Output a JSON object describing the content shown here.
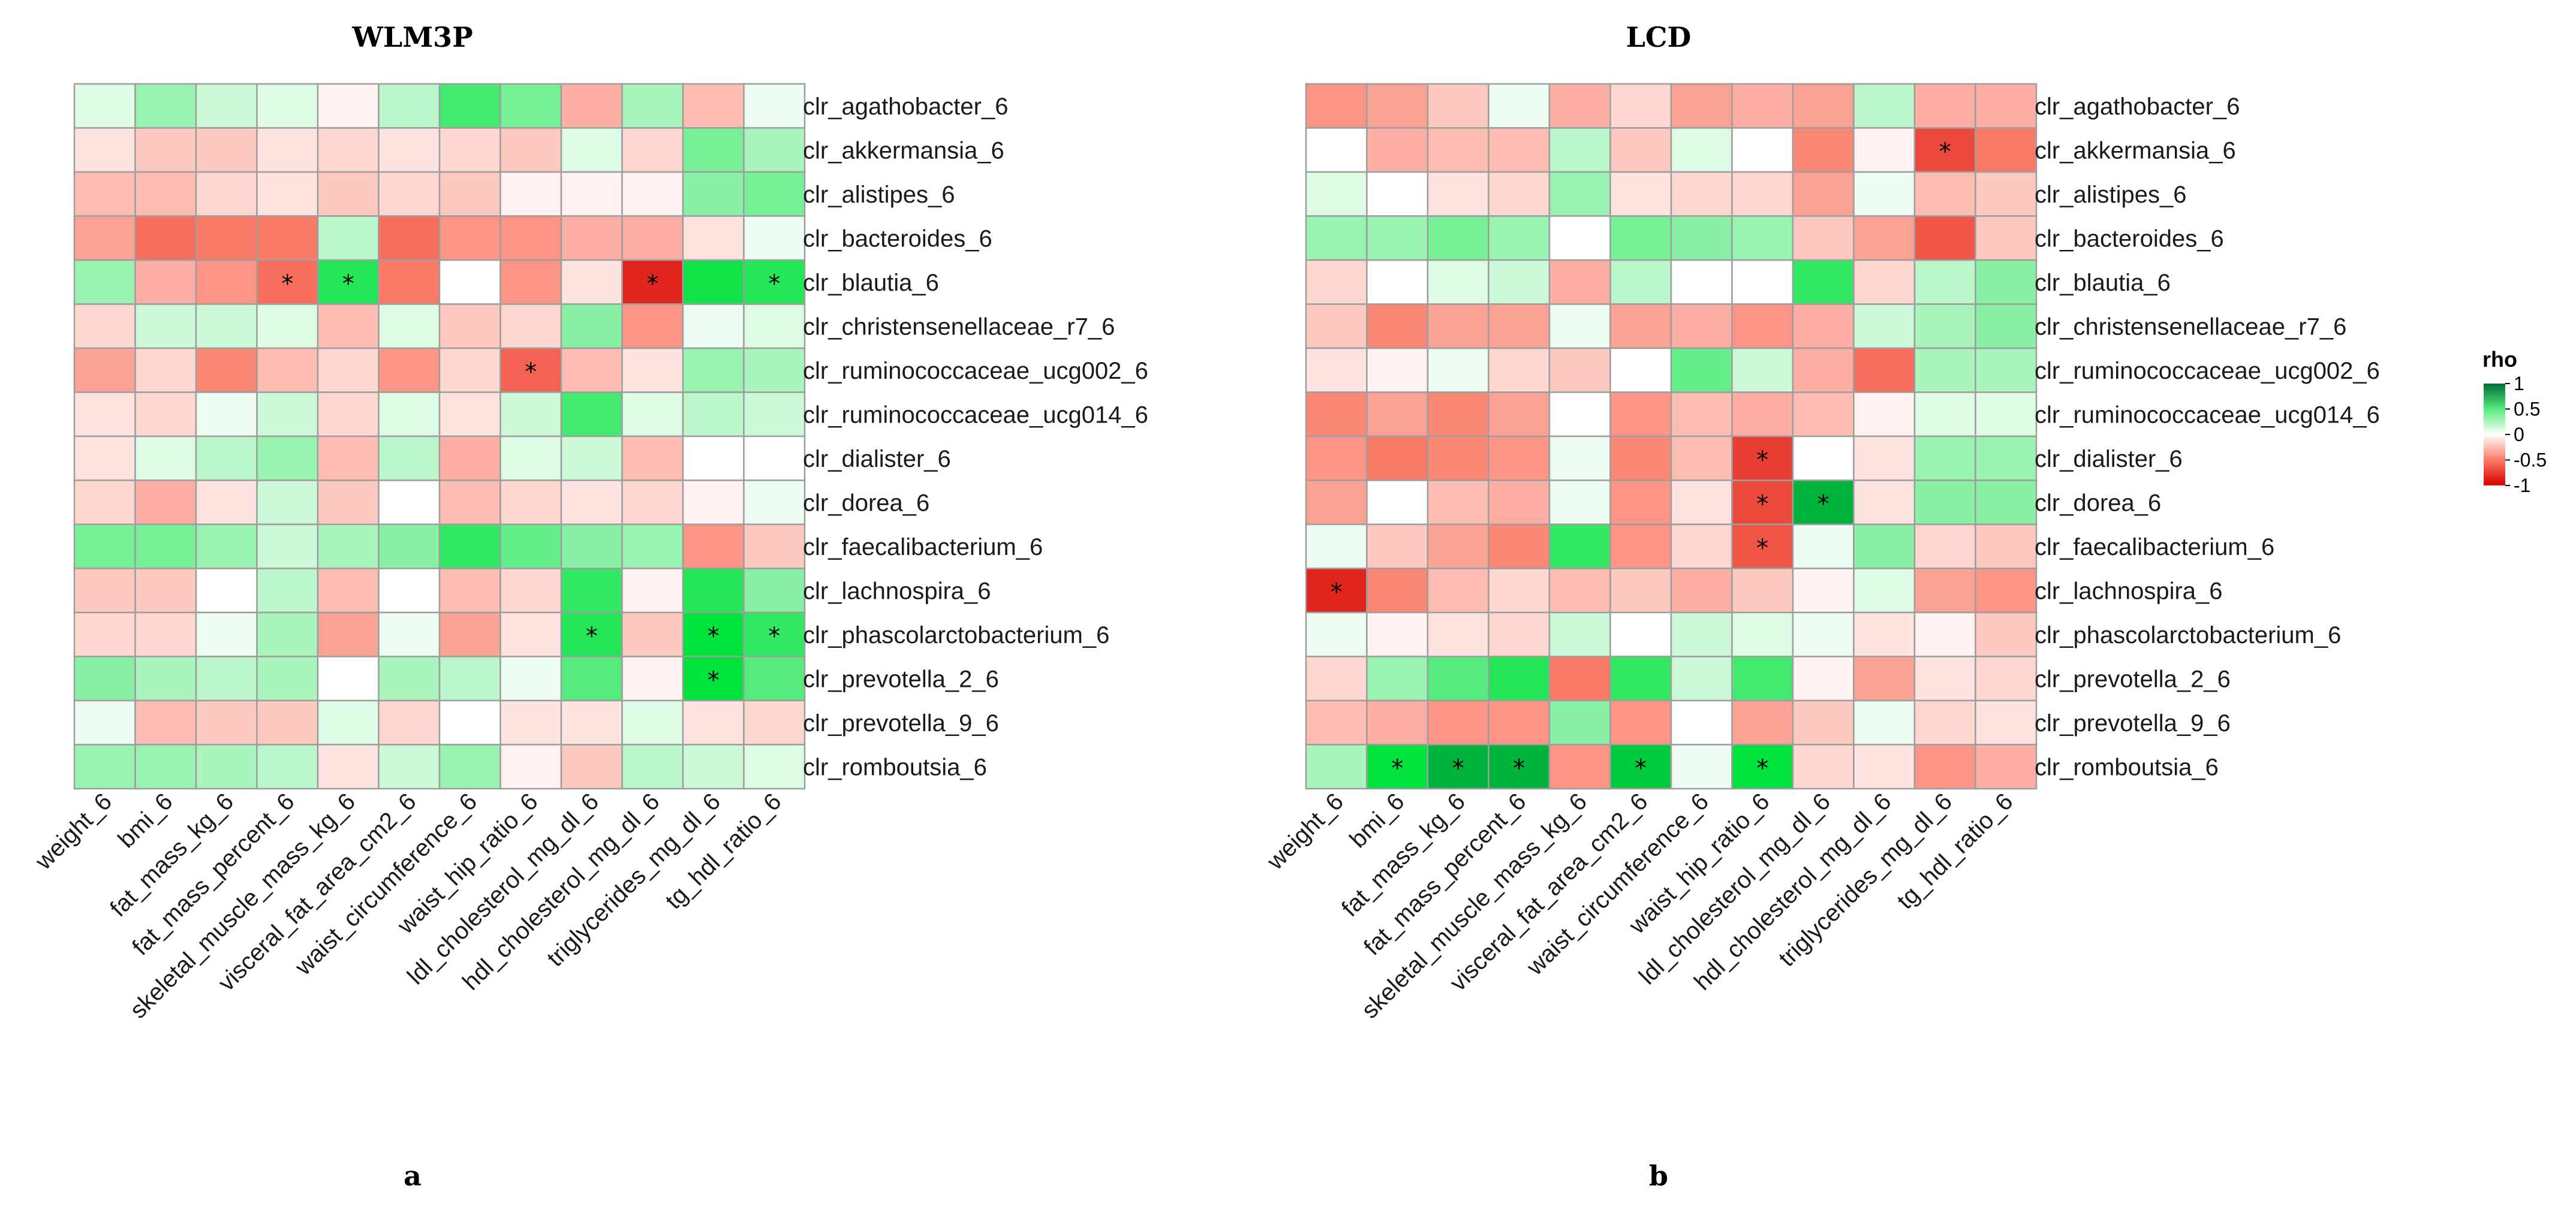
{
  "chart_data": [
    {
      "type": "heatmap",
      "title": "WLM3P",
      "panel_label": "a",
      "rows": [
        "clr_agathobacter_6",
        "clr_akkermansia_6",
        "clr_alistipes_6",
        "clr_bacteroides_6",
        "clr_blautia_6",
        "clr_christensenellaceae_r7_6",
        "clr_ruminococcaceae_ucg002_6",
        "clr_ruminococcaceae_ucg014_6",
        "clr_dialister_6",
        "clr_dorea_6",
        "clr_faecalibacterium_6",
        "clr_lachnospira_6",
        "clr_phascolarctobacterium_6",
        "clr_prevotella_2_6",
        "clr_prevotella_9_6",
        "clr_romboutsia_6"
      ],
      "columns": [
        "weight_6",
        "bmi_6",
        "fat_mass_kg_6",
        "fat_mass_percent_6",
        "skeletal_muscle_mass_kg_6",
        "visceral_fat_area_cm2_6",
        "waist_circumference_6",
        "waist_hip_ratio_6",
        "ldl_cholesterol_mg_dl_6",
        "hdl_cholesterol_mg_dl_6",
        "triglycerides_mg_dl_6",
        "tg_hdl_ratio_6"
      ],
      "values": [
        [
          0.1,
          0.3,
          0.15,
          0.1,
          -0.05,
          0.2,
          0.55,
          0.4,
          -0.3,
          0.25,
          -0.25,
          0.05
        ],
        [
          -0.1,
          -0.2,
          -0.2,
          -0.1,
          -0.15,
          -0.1,
          -0.15,
          -0.2,
          0.1,
          -0.15,
          0.4,
          0.25
        ],
        [
          -0.25,
          -0.25,
          -0.15,
          -0.1,
          -0.2,
          -0.15,
          -0.2,
          -0.05,
          -0.05,
          -0.05,
          0.35,
          0.4
        ],
        [
          -0.35,
          -0.55,
          -0.5,
          -0.5,
          0.2,
          -0.55,
          -0.4,
          -0.4,
          -0.3,
          -0.3,
          -0.1,
          0.05
        ],
        [
          0.3,
          -0.3,
          -0.4,
          -0.55,
          0.65,
          -0.5,
          0.0,
          -0.4,
          -0.1,
          -0.85,
          0.7,
          0.65
        ],
        [
          -0.15,
          0.15,
          0.15,
          0.1,
          -0.25,
          0.1,
          -0.2,
          -0.15,
          0.35,
          -0.4,
          0.05,
          0.1
        ],
        [
          -0.35,
          -0.15,
          -0.45,
          -0.25,
          -0.15,
          -0.4,
          -0.15,
          -0.6,
          -0.25,
          -0.1,
          0.3,
          0.25
        ],
        [
          -0.1,
          -0.15,
          0.05,
          0.15,
          -0.15,
          0.1,
          -0.1,
          0.15,
          0.55,
          0.1,
          0.2,
          0.15
        ],
        [
          -0.1,
          0.1,
          0.2,
          0.3,
          -0.25,
          0.2,
          -0.3,
          0.1,
          0.15,
          -0.25,
          0.0,
          0.0
        ],
        [
          -0.15,
          -0.3,
          -0.1,
          0.15,
          -0.2,
          0.0,
          -0.25,
          -0.15,
          -0.1,
          -0.15,
          -0.05,
          0.05
        ],
        [
          0.4,
          0.4,
          0.3,
          0.15,
          0.25,
          0.35,
          0.6,
          0.45,
          0.35,
          0.3,
          -0.4,
          -0.2
        ],
        [
          -0.2,
          -0.2,
          0.0,
          0.2,
          -0.25,
          0.0,
          -0.25,
          -0.15,
          0.6,
          -0.05,
          0.65,
          0.35
        ],
        [
          -0.15,
          -0.15,
          0.05,
          0.25,
          -0.35,
          0.05,
          -0.35,
          -0.1,
          0.65,
          -0.2,
          0.75,
          0.6
        ],
        [
          0.35,
          0.25,
          0.2,
          0.25,
          0.0,
          0.25,
          0.2,
          0.05,
          0.5,
          -0.05,
          0.75,
          0.5
        ],
        [
          0.05,
          -0.25,
          -0.2,
          -0.2,
          0.1,
          -0.15,
          0.0,
          -0.1,
          -0.1,
          0.1,
          -0.1,
          -0.15
        ],
        [
          0.3,
          0.3,
          0.25,
          0.2,
          -0.1,
          0.15,
          0.3,
          -0.05,
          -0.2,
          0.2,
          0.15,
          0.1
        ]
      ],
      "significant": [
        [
          4,
          3
        ],
        [
          4,
          4
        ],
        [
          4,
          9
        ],
        [
          4,
          11
        ],
        [
          6,
          7
        ],
        [
          12,
          8
        ],
        [
          12,
          10
        ],
        [
          12,
          11
        ],
        [
          13,
          10
        ]
      ],
      "star_symbol": "*"
    },
    {
      "type": "heatmap",
      "title": "LCD",
      "panel_label": "b",
      "rows": [
        "clr_agathobacter_6",
        "clr_akkermansia_6",
        "clr_alistipes_6",
        "clr_bacteroides_6",
        "clr_blautia_6",
        "clr_christensenellaceae_r7_6",
        "clr_ruminococcaceae_ucg002_6",
        "clr_ruminococcaceae_ucg014_6",
        "clr_dialister_6",
        "clr_dorea_6",
        "clr_faecalibacterium_6",
        "clr_lachnospira_6",
        "clr_phascolarctobacterium_6",
        "clr_prevotella_2_6",
        "clr_prevotella_9_6",
        "clr_romboutsia_6"
      ],
      "columns": [
        "weight_6",
        "bmi_6",
        "fat_mass_kg_6",
        "fat_mass_percent_6",
        "skeletal_muscle_mass_kg_6",
        "visceral_fat_area_cm2_6",
        "waist_circumference_6",
        "waist_hip_ratio_6",
        "ldl_cholesterol_mg_dl_6",
        "hdl_cholesterol_mg_dl_6",
        "triglycerides_mg_dl_6",
        "tg_hdl_ratio_6"
      ],
      "values": [
        [
          -0.4,
          -0.35,
          -0.2,
          0.05,
          -0.3,
          -0.15,
          -0.35,
          -0.3,
          -0.35,
          0.2,
          -0.3,
          -0.3
        ],
        [
          0.0,
          -0.3,
          -0.25,
          -0.25,
          0.2,
          -0.2,
          0.1,
          0.0,
          -0.45,
          -0.05,
          -0.7,
          -0.5
        ],
        [
          0.1,
          0.0,
          -0.1,
          -0.15,
          0.3,
          -0.1,
          -0.15,
          -0.15,
          -0.35,
          0.05,
          -0.25,
          -0.2
        ],
        [
          0.3,
          0.3,
          0.4,
          0.3,
          0.0,
          0.4,
          0.35,
          0.3,
          -0.2,
          -0.35,
          -0.65,
          -0.2
        ],
        [
          -0.15,
          0.0,
          0.1,
          0.15,
          -0.3,
          0.2,
          0.0,
          0.0,
          0.6,
          -0.15,
          0.2,
          0.35
        ],
        [
          -0.2,
          -0.45,
          -0.35,
          -0.35,
          0.05,
          -0.35,
          -0.3,
          -0.4,
          -0.3,
          0.15,
          0.25,
          0.35
        ],
        [
          -0.1,
          -0.05,
          0.05,
          -0.15,
          -0.2,
          0.0,
          0.45,
          0.15,
          -0.3,
          -0.55,
          0.25,
          0.25
        ],
        [
          -0.45,
          -0.35,
          -0.45,
          -0.35,
          0.0,
          -0.4,
          -0.25,
          -0.3,
          -0.25,
          -0.05,
          0.1,
          0.1
        ],
        [
          -0.4,
          -0.5,
          -0.45,
          -0.4,
          0.05,
          -0.45,
          -0.25,
          -0.75,
          0.0,
          -0.1,
          0.3,
          0.3
        ],
        [
          -0.35,
          0.0,
          -0.25,
          -0.3,
          0.05,
          -0.4,
          -0.1,
          -0.7,
          0.85,
          -0.1,
          0.35,
          0.35
        ],
        [
          0.05,
          -0.2,
          -0.35,
          -0.45,
          0.6,
          -0.4,
          -0.15,
          -0.65,
          0.05,
          0.35,
          -0.15,
          -0.2
        ],
        [
          -0.85,
          -0.45,
          -0.25,
          -0.15,
          -0.25,
          -0.2,
          -0.3,
          -0.2,
          -0.05,
          0.1,
          -0.35,
          -0.4
        ],
        [
          0.05,
          -0.05,
          -0.1,
          -0.15,
          0.15,
          0.0,
          0.15,
          0.1,
          0.05,
          -0.1,
          -0.05,
          -0.2
        ],
        [
          -0.15,
          0.3,
          0.5,
          0.65,
          -0.5,
          0.6,
          0.15,
          0.55,
          -0.05,
          -0.35,
          -0.1,
          -0.15
        ],
        [
          -0.25,
          -0.3,
          -0.4,
          -0.4,
          0.35,
          -0.4,
          0.0,
          -0.35,
          -0.2,
          0.05,
          -0.15,
          -0.1
        ],
        [
          0.25,
          0.75,
          0.85,
          0.85,
          -0.4,
          0.8,
          0.05,
          0.75,
          -0.15,
          -0.1,
          -0.4,
          -0.3
        ]
      ],
      "significant": [
        [
          1,
          10
        ],
        [
          8,
          7
        ],
        [
          9,
          7
        ],
        [
          9,
          8
        ],
        [
          10,
          7
        ],
        [
          11,
          0
        ],
        [
          15,
          1
        ],
        [
          15,
          2
        ],
        [
          15,
          3
        ],
        [
          15,
          5
        ],
        [
          15,
          7
        ]
      ],
      "star_symbol": "*"
    }
  ],
  "legend": {
    "title": "rho",
    "ticks": [
      "1",
      "0.5",
      "0",
      "-0.5",
      "-1"
    ],
    "tick_values": [
      1,
      0.5,
      0,
      -0.5,
      -1
    ],
    "colors": {
      "pos_max": "#006d3a",
      "pos_mid": "#00e23c",
      "zero": "#ffffff",
      "neg_mid": "#fb7a66",
      "neg_max": "#d50000"
    }
  }
}
